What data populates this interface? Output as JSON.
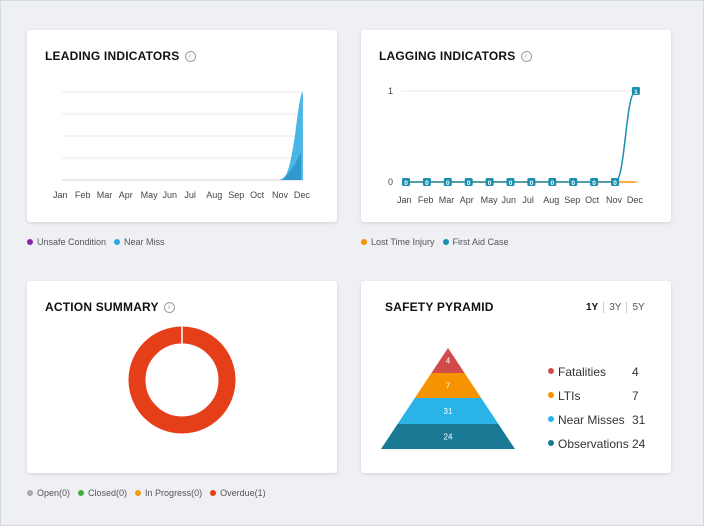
{
  "leading": {
    "title": "LEADING INDICATORS",
    "info": "i",
    "months": [
      "Jan",
      "Feb",
      "Mar",
      "Apr",
      "May",
      "Jun",
      "Jul",
      "Aug",
      "Sep",
      "Oct",
      "Nov",
      "Dec"
    ],
    "legend": [
      {
        "label": "Unsafe Condition",
        "color": "#8e24aa"
      },
      {
        "label": "Near Miss",
        "color": "#29a9e0"
      }
    ]
  },
  "lagging": {
    "title": "LAGGING INDICATORS",
    "info": "i",
    "months": [
      "Jan",
      "Feb",
      "Mar",
      "Apr",
      "May",
      "Jun",
      "Jul",
      "Aug",
      "Sep",
      "Oct",
      "Nov",
      "Dec"
    ],
    "y_ticks": [
      "0",
      "1"
    ],
    "legend": [
      {
        "label": "Lost Time Injury",
        "color": "#f59300"
      },
      {
        "label": "First Aid Case",
        "color": "#1a8fb0"
      }
    ]
  },
  "action": {
    "title": "ACTION SUMMARY",
    "info": "i",
    "legend": [
      {
        "label": "Open(0)",
        "color": "#a9a9a9"
      },
      {
        "label": "Closed(0)",
        "color": "#3fae3a"
      },
      {
        "label": "In Progress(0)",
        "color": "#f39c12"
      },
      {
        "label": "Overdue(1)",
        "color": "#e53f1a"
      }
    ]
  },
  "pyramid": {
    "title": "SAFETY PYRAMID",
    "ranges": [
      "1Y",
      "3Y",
      "5Y"
    ],
    "levels": [
      {
        "label": "Fatalities",
        "value": "4",
        "color": "#d24b4b"
      },
      {
        "label": "LTIs",
        "value": "7",
        "color": "#f59300"
      },
      {
        "label": "Near Misses",
        "value": "31",
        "color": "#29b3e6"
      },
      {
        "label": "Observations",
        "value": "24",
        "color": "#1a7a96"
      }
    ]
  },
  "chart_data": [
    {
      "type": "area",
      "title": "LEADING INDICATORS",
      "categories": [
        "Jan",
        "Feb",
        "Mar",
        "Apr",
        "May",
        "Jun",
        "Jul",
        "Aug",
        "Sep",
        "Oct",
        "Nov",
        "Dec"
      ],
      "series": [
        {
          "name": "Unsafe Condition",
          "values": [
            0,
            0,
            0,
            0,
            0,
            0,
            0,
            0,
            0,
            0,
            0,
            0
          ]
        },
        {
          "name": "Near Miss",
          "values": [
            0,
            0,
            0,
            0,
            0,
            0,
            0,
            0,
            0,
            0,
            0,
            1
          ]
        }
      ]
    },
    {
      "type": "line",
      "title": "LAGGING INDICATORS",
      "categories": [
        "Jan",
        "Feb",
        "Mar",
        "Apr",
        "May",
        "Jun",
        "Jul",
        "Aug",
        "Sep",
        "Oct",
        "Nov",
        "Dec"
      ],
      "ylim": [
        0,
        1
      ],
      "series": [
        {
          "name": "Lost Time Injury",
          "values": [
            0,
            0,
            0,
            0,
            0,
            0,
            0,
            0,
            0,
            0,
            0,
            0
          ]
        },
        {
          "name": "First Aid Case",
          "values": [
            0,
            0,
            0,
            0,
            0,
            0,
            0,
            0,
            0,
            0,
            0,
            1
          ]
        }
      ]
    },
    {
      "type": "pie",
      "title": "ACTION SUMMARY",
      "categories": [
        "Open",
        "Closed",
        "In Progress",
        "Overdue"
      ],
      "values": [
        0,
        0,
        0,
        1
      ]
    }
  ]
}
